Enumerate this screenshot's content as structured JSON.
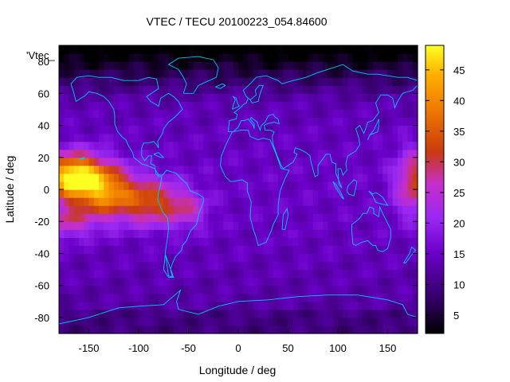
{
  "chart_data": {
    "type": "heatmap",
    "title": "VTEC / TECU 20100223_054.84600",
    "xlabel": "Longitude / deg",
    "ylabel": "Latitude / deg",
    "xlim": [
      -180,
      180
    ],
    "ylim": [
      -90,
      90
    ],
    "xticks": [
      -150,
      -100,
      -50,
      0,
      50,
      100,
      150
    ],
    "yticks": [
      -80,
      -60,
      -40,
      -20,
      0,
      20,
      40,
      60,
      80
    ],
    "plot_key_label": "'Vtec_",
    "colorbar": {
      "range": [
        2,
        49
      ],
      "ticks": [
        5,
        10,
        15,
        20,
        25,
        30,
        35,
        40,
        45
      ],
      "colormap": "gnuplot-pm3d-black-purple-red-orange-yellow"
    },
    "grid": false,
    "overlay": "coastlines (cyan #00c8ff)",
    "field_description": "gridded VTEC values; peaks ~48 near (-170,10) and ~30 near (175,5); lows ~3 over northern polar region",
    "field_features": [
      {
        "lon": -165,
        "lat": 8,
        "value": 48,
        "spread_lon": 30,
        "spread_lat": 14
      },
      {
        "lon": -130,
        "lat": -2,
        "value": 35,
        "spread_lon": 30,
        "spread_lat": 16
      },
      {
        "lon": -85,
        "lat": -8,
        "value": 30,
        "spread_lon": 28,
        "spread_lat": 14
      },
      {
        "lon": -50,
        "lat": -12,
        "value": 22,
        "spread_lon": 20,
        "spread_lat": 12
      },
      {
        "lon": 178,
        "lat": 5,
        "value": 30,
        "spread_lon": 20,
        "spread_lat": 20
      },
      {
        "lon": -175,
        "lat": -20,
        "value": 25,
        "spread_lon": 30,
        "spread_lat": 10
      }
    ]
  }
}
